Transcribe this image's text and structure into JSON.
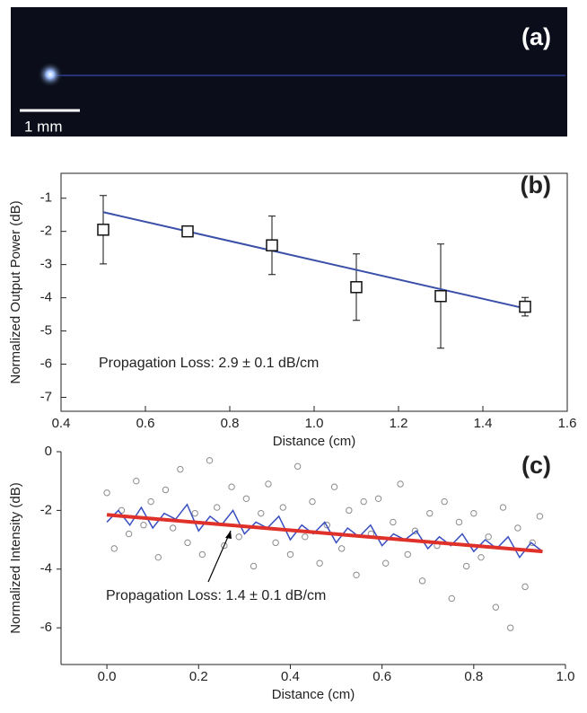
{
  "image_panel": {
    "label": "(a)",
    "scale_bar_label": "1 mm"
  },
  "chart_data": [
    {
      "type": "scatter",
      "panel_label": "(b)",
      "xlabel": "Distance (cm)",
      "ylabel": "Normalized Output Power (dB)",
      "annotation": "Propagation Loss: 2.9 ± 0.1 dB/cm",
      "x": [
        0.5,
        0.7,
        0.9,
        1.1,
        1.3,
        1.5
      ],
      "values": [
        -1.95,
        -2.0,
        -2.42,
        -3.68,
        -3.95,
        -4.27
      ],
      "errors": [
        1.03,
        0.1,
        0.88,
        1.0,
        1.57,
        0.28
      ],
      "color": "#111111",
      "fit": {
        "x": [
          0.5,
          1.5
        ],
        "values": [
          -1.42,
          -4.32
        ],
        "color": "#3a4fa8"
      },
      "xlim": [
        0.4,
        1.6
      ],
      "ylim": [
        -7.42,
        -0.25
      ],
      "xticks": [
        0.4,
        0.6,
        0.8,
        {
          "value": 1,
          "label": "1.0"
        },
        1.2,
        1.4,
        1.6
      ],
      "yticks": [
        -1,
        -2,
        -3,
        -4,
        -5,
        -6,
        -7
      ]
    },
    {
      "type": "scatter",
      "panel_label": "(c)",
      "xlabel": "Distance (cm)",
      "ylabel": "Normalized Intensity (dB)",
      "annotation": "Propagation Loss: 1.4 ± 0.1 dB/cm",
      "points": {
        "color": "#8c8c8c",
        "x": [
          0,
          0.016,
          0.032,
          0.048,
          0.064,
          0.08,
          0.096,
          0.112,
          0.128,
          0.144,
          0.16,
          0.176,
          0.192,
          0.208,
          0.224,
          0.24,
          0.256,
          0.272,
          0.288,
          0.304,
          0.32,
          0.336,
          0.352,
          0.368,
          0.384,
          0.4,
          0.416,
          0.432,
          0.448,
          0.464,
          0.48,
          0.496,
          0.512,
          0.528,
          0.544,
          0.56,
          0.576,
          0.592,
          0.608,
          0.624,
          0.64,
          0.656,
          0.672,
          0.688,
          0.704,
          0.72,
          0.736,
          0.752,
          0.768,
          0.784,
          0.8,
          0.816,
          0.832,
          0.848,
          0.864,
          0.88,
          0.896,
          0.912,
          0.928,
          0.944
        ],
        "values": [
          -1.4,
          -3.3,
          -2.0,
          -2.8,
          -1.0,
          -2.5,
          -1.7,
          -3.6,
          -1.3,
          -2.6,
          -0.6,
          -3.1,
          -2.1,
          -3.5,
          -0.3,
          -1.9,
          -3.2,
          -1.2,
          -2.9,
          -1.6,
          -3.9,
          -2.1,
          -1.1,
          -3.1,
          -1.9,
          -3.5,
          -0.5,
          -2.9,
          -1.7,
          -3.8,
          -2.5,
          -1.2,
          -3.3,
          -2.0,
          -4.2,
          -1.7,
          -2.8,
          -1.6,
          -3.8,
          -2.4,
          -1.1,
          -3.5,
          -2.7,
          -4.4,
          -2.1,
          -3.2,
          -1.7,
          -5.0,
          -2.4,
          -3.9,
          -2.1,
          -3.6,
          -2.9,
          -5.3,
          -1.9,
          -6.0,
          -2.6,
          -4.6,
          -3.1,
          -2.2
        ]
      },
      "smoothed": {
        "color": "#3a4fc0",
        "x": [
          0,
          0.025,
          0.05,
          0.075,
          0.1,
          0.125,
          0.15,
          0.175,
          0.2,
          0.225,
          0.25,
          0.275,
          0.3,
          0.325,
          0.35,
          0.375,
          0.4,
          0.425,
          0.45,
          0.475,
          0.5,
          0.525,
          0.55,
          0.575,
          0.6,
          0.625,
          0.65,
          0.675,
          0.7,
          0.725,
          0.75,
          0.775,
          0.8,
          0.825,
          0.85,
          0.875,
          0.9,
          0.925,
          0.95
        ],
        "values": [
          -2.4,
          -2.0,
          -2.5,
          -1.9,
          -2.6,
          -2.1,
          -2.3,
          -1.8,
          -2.7,
          -2.2,
          -2.5,
          -2.0,
          -2.8,
          -2.4,
          -2.6,
          -2.2,
          -3.0,
          -2.5,
          -2.8,
          -2.4,
          -3.1,
          -2.6,
          -2.9,
          -2.5,
          -3.2,
          -2.8,
          -3.0,
          -2.7,
          -3.3,
          -2.9,
          -3.2,
          -2.8,
          -3.4,
          -3.0,
          -3.3,
          -2.9,
          -3.6,
          -3.1,
          -3.4
        ]
      },
      "fit": {
        "x": [
          0,
          0.95
        ],
        "values": [
          -2.15,
          -3.4
        ],
        "color": "#e0302a"
      },
      "xlim": [
        -0.1,
        1.0
      ],
      "ylim": [
        -7.25,
        0
      ],
      "xticks": [
        {
          "value": 0,
          "label": "0.0"
        },
        0.2,
        0.4,
        0.6,
        0.8,
        {
          "value": 1,
          "label": "1.0"
        }
      ],
      "yticks": [
        0,
        -2,
        -4,
        -6
      ]
    }
  ]
}
